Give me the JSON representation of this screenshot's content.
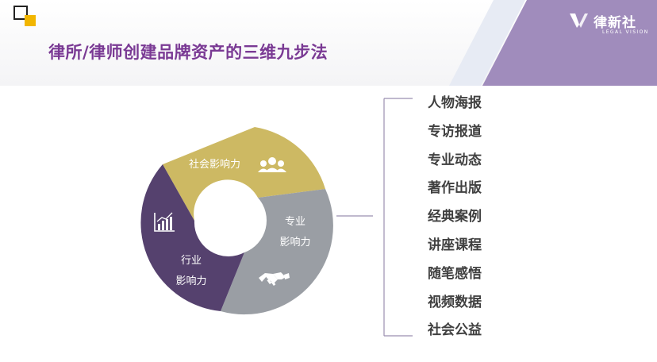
{
  "title": "律所/律师创建品牌资产的三维九步法",
  "brand": {
    "name": "律新社",
    "subtitle": "LEGAL VISION",
    "accent": "#a08cbc"
  },
  "colors": {
    "title": "#7a3a94",
    "gold": "#cdb963",
    "gray": "#9a9ea4",
    "purple": "#55416e",
    "logo_yellow": "#f2b600",
    "list_text": "#404040"
  },
  "ring": {
    "segments": [
      {
        "label": "社会影响力",
        "icon": "people-icon",
        "color": "#cdb963"
      },
      {
        "label_line1": "专业",
        "label_line2": "影响力",
        "icon": "handshake-icon",
        "color": "#9a9ea4"
      },
      {
        "label_line1": "行业",
        "label_line2": "影响力",
        "icon": "bar-chart-icon",
        "color": "#55416e"
      }
    ]
  },
  "steps": [
    "人物海报",
    "专访报道",
    "专业动态",
    "著作出版",
    "经典案例",
    "讲座课程",
    "随笔感悟",
    "视频数据",
    "社会公益"
  ]
}
